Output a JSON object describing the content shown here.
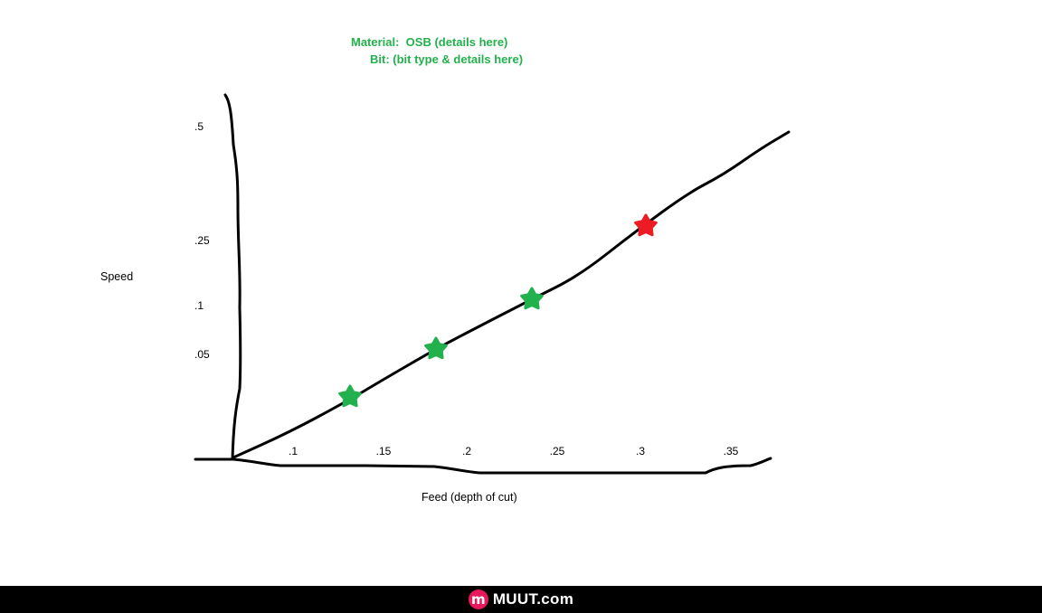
{
  "annotation": {
    "material_line": "Material:  OSB (details here)",
    "bit_line": "Bit: (bit type & details here)"
  },
  "chart_data": {
    "type": "line",
    "title": "",
    "xlabel": "Feed (depth of cut)",
    "ylabel": "Speed",
    "x_ticks": [
      ".1",
      ".15",
      ".2",
      ".25",
      ".3",
      ".35"
    ],
    "y_ticks": [
      ".05",
      ".1",
      ".25",
      ".5"
    ],
    "grid": false,
    "series": [
      {
        "x": [
          0.05,
          0.15,
          0.2,
          0.25,
          0.3,
          0.4
        ],
        "y": [
          0,
          0.01,
          0.08,
          0.13,
          0.22,
          0.58
        ]
      }
    ],
    "markers": [
      {
        "shape": "star",
        "color": "#22b14c",
        "x": 0.135,
        "y": 0.03
      },
      {
        "shape": "star",
        "color": "#22b14c",
        "x": 0.185,
        "y": 0.06
      },
      {
        "shape": "star",
        "color": "#22b14c",
        "x": 0.24,
        "y": 0.11
      },
      {
        "shape": "star",
        "color": "#ed1c24",
        "x": 0.305,
        "y": 0.2
      }
    ]
  },
  "footer": {
    "logo_letter": "m",
    "brand": "MUUT.com"
  }
}
